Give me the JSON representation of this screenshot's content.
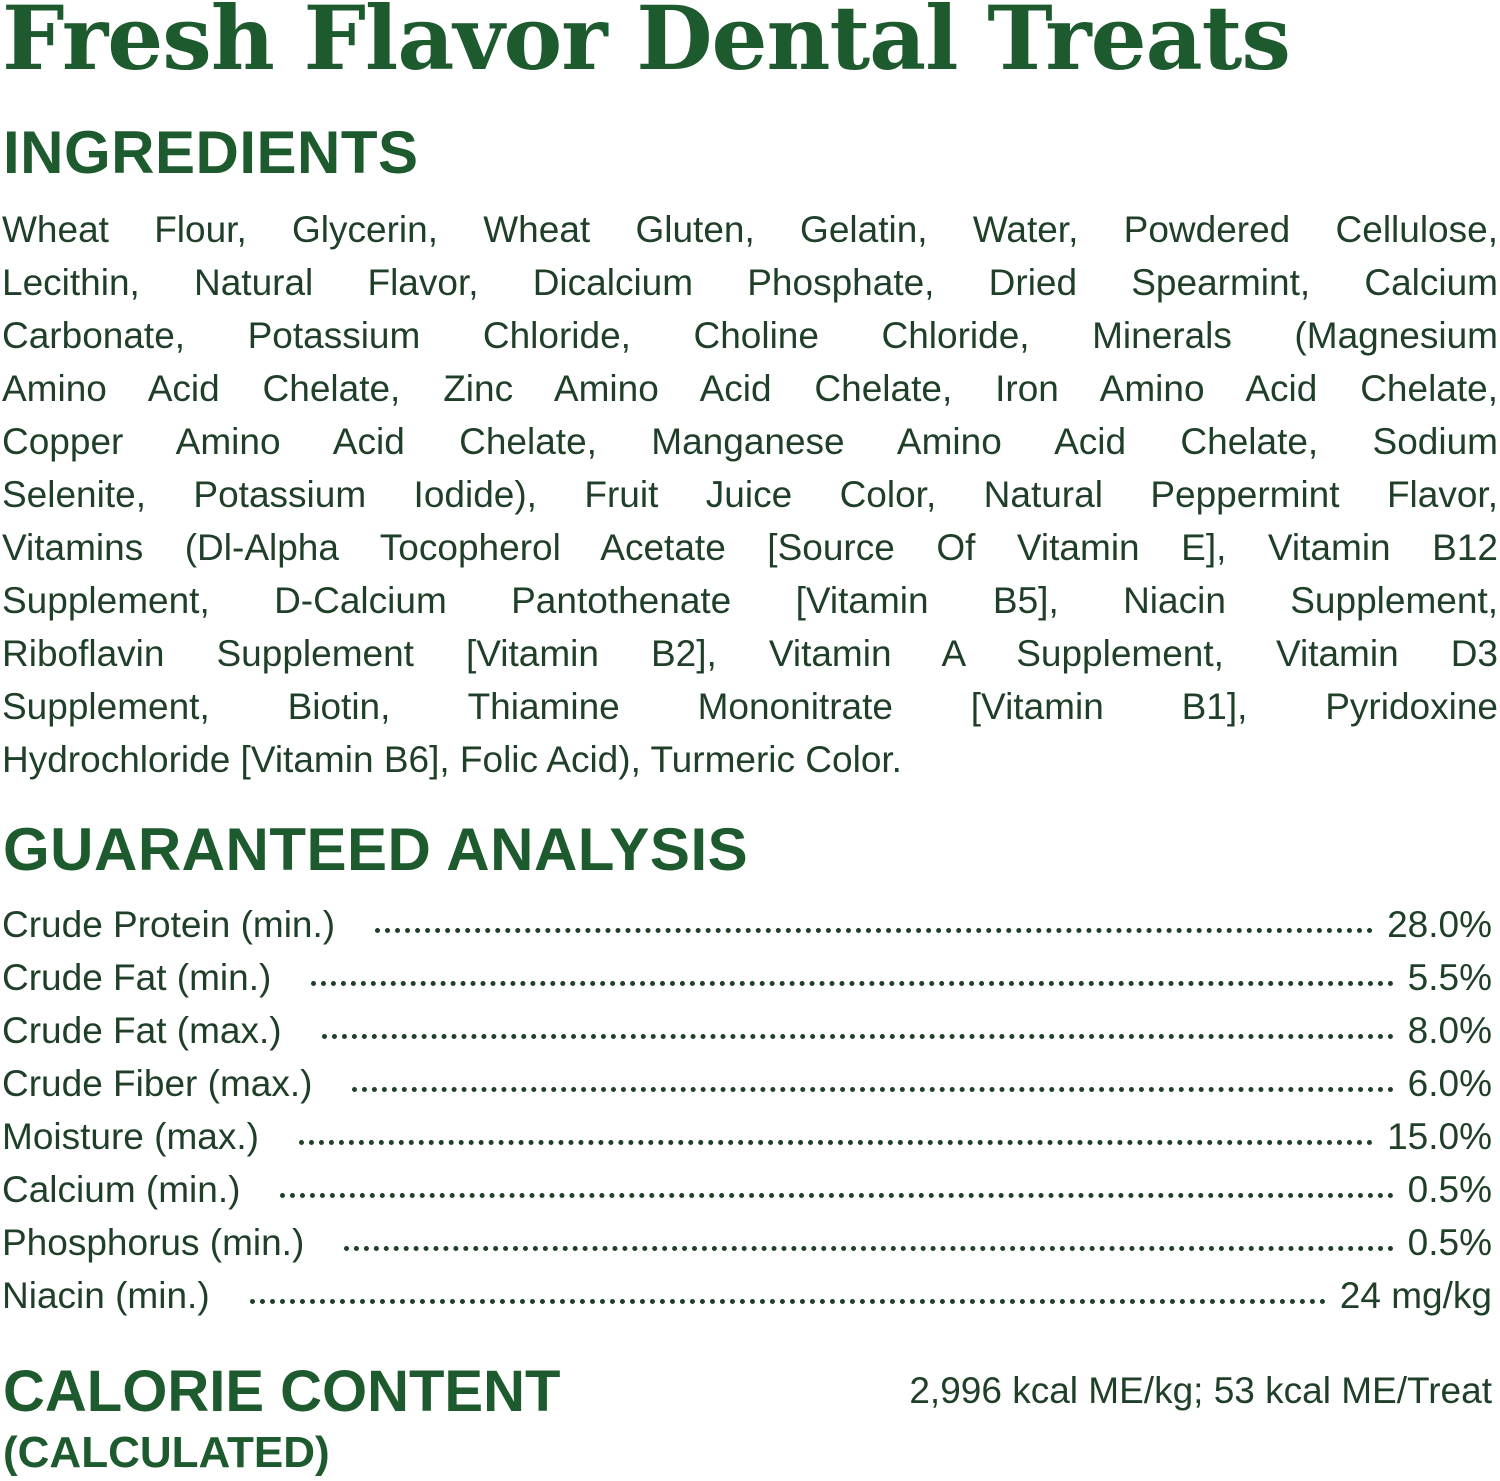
{
  "title": "Fresh Flavor Dental Treats",
  "ingredients": {
    "heading": "INGREDIENTS",
    "lines": [
      "Wheat Flour, Glycerin, Wheat Gluten, Gelatin, Water, Powdered Cellulose,",
      "Lecithin, Natural Flavor, Dicalcium Phosphate, Dried Spearmint, Calcium",
      "Carbonate, Potassium Chloride, Choline Chloride, Minerals (Magnesium",
      "Amino Acid Chelate, Zinc Amino Acid Chelate, Iron Amino Acid Chelate,",
      "Copper Amino Acid Chelate, Manganese Amino Acid Chelate, Sodium",
      "Selenite, Potassium Iodide), Fruit Juice Color, Natural Peppermint Flavor,",
      "Vitamins (Dl-Alpha Tocopherol Acetate [Source Of Vitamin E], Vitamin B12",
      "Supplement, D-Calcium Pantothenate [Vitamin B5], Niacin Supplement,",
      "Riboflavin Supplement [Vitamin B2], Vitamin A Supplement, Vitamin D3",
      "Supplement, Biotin, Thiamine Mononitrate [Vitamin B1], Pyridoxine",
      "Hydrochloride [Vitamin B6], Folic Acid), Turmeric Color."
    ]
  },
  "analysis": {
    "heading": "GUARANTEED ANALYSIS",
    "rows": [
      {
        "label": "Crude Protein (min.)",
        "value": "28.0%"
      },
      {
        "label": "Crude Fat (min.)",
        "value": "5.5%"
      },
      {
        "label": "Crude Fat (max.)",
        "value": "8.0%"
      },
      {
        "label": "Crude Fiber (max.)",
        "value": "6.0%"
      },
      {
        "label": "Moisture (max.)",
        "value": "15.0%"
      },
      {
        "label": "Calcium (min.)",
        "value": "0.5%"
      },
      {
        "label": "Phosphorus (min.)",
        "value": "0.5%"
      },
      {
        "label": "Niacin (min.)",
        "value": "24 mg/kg"
      }
    ]
  },
  "calorie": {
    "heading": "CALORIE CONTENT",
    "subheading": "(CALCULATED)",
    "value": "2,996 kcal ME/kg; 53 kcal ME/Treat"
  },
  "colors": {
    "heading": "#1d5a2e",
    "text": "#1f3f29",
    "background": "#ffffff"
  }
}
